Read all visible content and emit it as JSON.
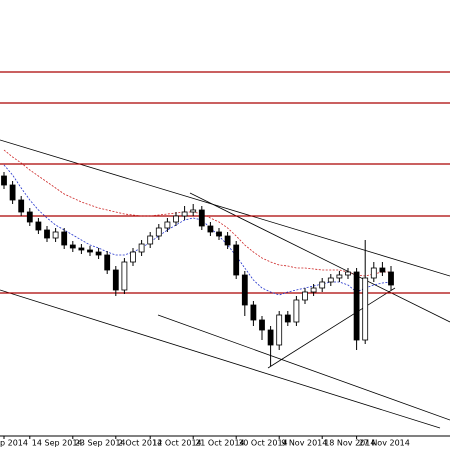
{
  "chart_data": {
    "type": "candlestick",
    "categories": [
      "p 2014",
      null,
      null,
      "14 Sep 2014",
      null,
      null,
      null,
      null,
      "23 Sep 2014",
      null,
      null,
      null,
      null,
      "2 Oct 2014",
      null,
      null,
      null,
      "12 Oct 2014",
      null,
      null,
      null,
      null,
      "21 Oct 2014",
      null,
      null,
      null,
      null,
      "30 Oct 2014",
      null,
      null,
      null,
      null,
      "9 Nov 2014",
      null,
      null,
      null,
      null,
      "18 Nov 2014",
      null,
      null,
      null,
      "27 Nov 2014",
      null,
      null,
      null,
      null
    ],
    "open": [
      260,
      251,
      236,
      224,
      214,
      206,
      198,
      204,
      191,
      188,
      186,
      184,
      181,
      166,
      146,
      174,
      184,
      192,
      200,
      208,
      214,
      220,
      224,
      226,
      210,
      204,
      200,
      191,
      161,
      131,
      116,
      106,
      91,
      121,
      114,
      136,
      144,
      148,
      154,
      158,
      161,
      164,
      96,
      158,
      168,
      164
    ],
    "high": [
      264,
      255,
      240,
      228,
      218,
      210,
      208,
      208,
      195,
      192,
      190,
      188,
      185,
      170,
      178,
      188,
      196,
      204,
      212,
      218,
      224,
      230,
      232,
      230,
      214,
      208,
      204,
      195,
      165,
      135,
      120,
      110,
      125,
      125,
      140,
      148,
      152,
      158,
      162,
      165,
      168,
      168,
      196,
      174,
      174,
      170
    ],
    "low": [
      247,
      232,
      220,
      210,
      202,
      194,
      194,
      187,
      184,
      182,
      180,
      177,
      162,
      140,
      142,
      170,
      180,
      188,
      196,
      204,
      210,
      216,
      220,
      206,
      200,
      196,
      187,
      157,
      120,
      110,
      96,
      70,
      86,
      110,
      110,
      132,
      140,
      144,
      150,
      154,
      157,
      86,
      92,
      154,
      160,
      146
    ],
    "close": [
      251,
      236,
      224,
      214,
      206,
      198,
      204,
      191,
      188,
      186,
      184,
      181,
      166,
      146,
      174,
      184,
      192,
      200,
      208,
      214,
      220,
      224,
      226,
      210,
      204,
      200,
      191,
      161,
      131,
      116,
      106,
      91,
      121,
      114,
      136,
      144,
      148,
      154,
      158,
      161,
      164,
      96,
      158,
      168,
      164,
      151
    ],
    "series": [
      {
        "color": "#cc2222",
        "values": [
          286,
          279,
          273,
          266,
          260,
          254,
          248,
          242,
          238,
          234,
          231,
          228,
          226,
          224,
          222,
          221,
          220,
          220,
          221,
          222,
          223,
          224,
          224,
          222,
          218,
          214,
          208,
          200,
          191,
          184,
          178,
          174,
          171,
          170,
          168,
          168,
          167,
          166,
          166,
          166,
          164,
          161,
          160,
          162,
          164,
          164
        ]
      },
      {
        "color": "#2233cc",
        "values": [
          271,
          261,
          248,
          236,
          226,
          218,
          211,
          206,
          201,
          196,
          191,
          188,
          184,
          181,
          181,
          184,
          188,
          194,
          200,
          206,
          211,
          216,
          218,
          216,
          208,
          200,
          191,
          180,
          168,
          156,
          148,
          144,
          141,
          144,
          146,
          148,
          150,
          152,
          154,
          154,
          151,
          144,
          148,
          151,
          153,
          154
        ]
      }
    ],
    "levels": [
      364,
      333,
      272,
      220,
      143
    ],
    "level_color": "#aa0000",
    "ylim": [
      0,
      436
    ]
  }
}
